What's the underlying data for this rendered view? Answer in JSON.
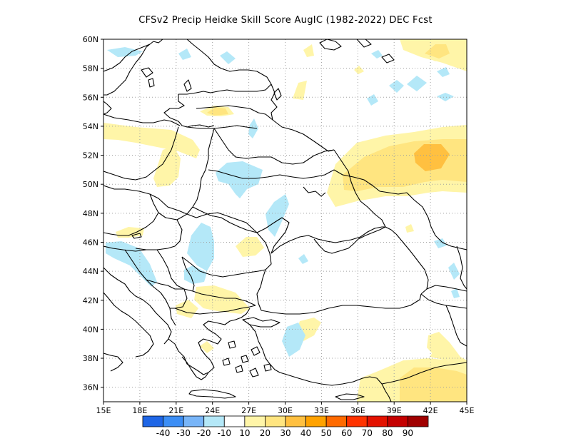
{
  "title": "CFSv2 Precip Heidke Skill Score AugIC (1982-2022) DEC Fcst",
  "map": {
    "lon_range": [
      15,
      45
    ],
    "lat_range": [
      35,
      60
    ],
    "lon_ticks": [
      "15E",
      "18E",
      "21E",
      "24E",
      "27E",
      "30E",
      "33E",
      "36E",
      "39E",
      "42E",
      "45E"
    ],
    "lat_ticks": [
      "36N",
      "38N",
      "40N",
      "42N",
      "44N",
      "46N",
      "48N",
      "50N",
      "52N",
      "54N",
      "56N",
      "58N",
      "60N"
    ]
  },
  "colorbar": {
    "colors": [
      "#1f66e6",
      "#3c8ef5",
      "#78b5f8",
      "#b4e8f8",
      "#ffffff",
      "#fff5a8",
      "#ffe580",
      "#ffc040",
      "#ffa200",
      "#ff6a00",
      "#ff3300",
      "#e31200",
      "#c40000",
      "#a00000"
    ],
    "labels": [
      "-40",
      "-30",
      "-20",
      "-10",
      "10",
      "20",
      "30",
      "40",
      "50",
      "60",
      "70",
      "80",
      "90"
    ]
  },
  "colors": {
    "light_yellow": "#fff5a8",
    "yellow": "#ffe580",
    "orange": "#ffc040",
    "light_blue": "#b4e8f8",
    "border": "#000000"
  }
}
